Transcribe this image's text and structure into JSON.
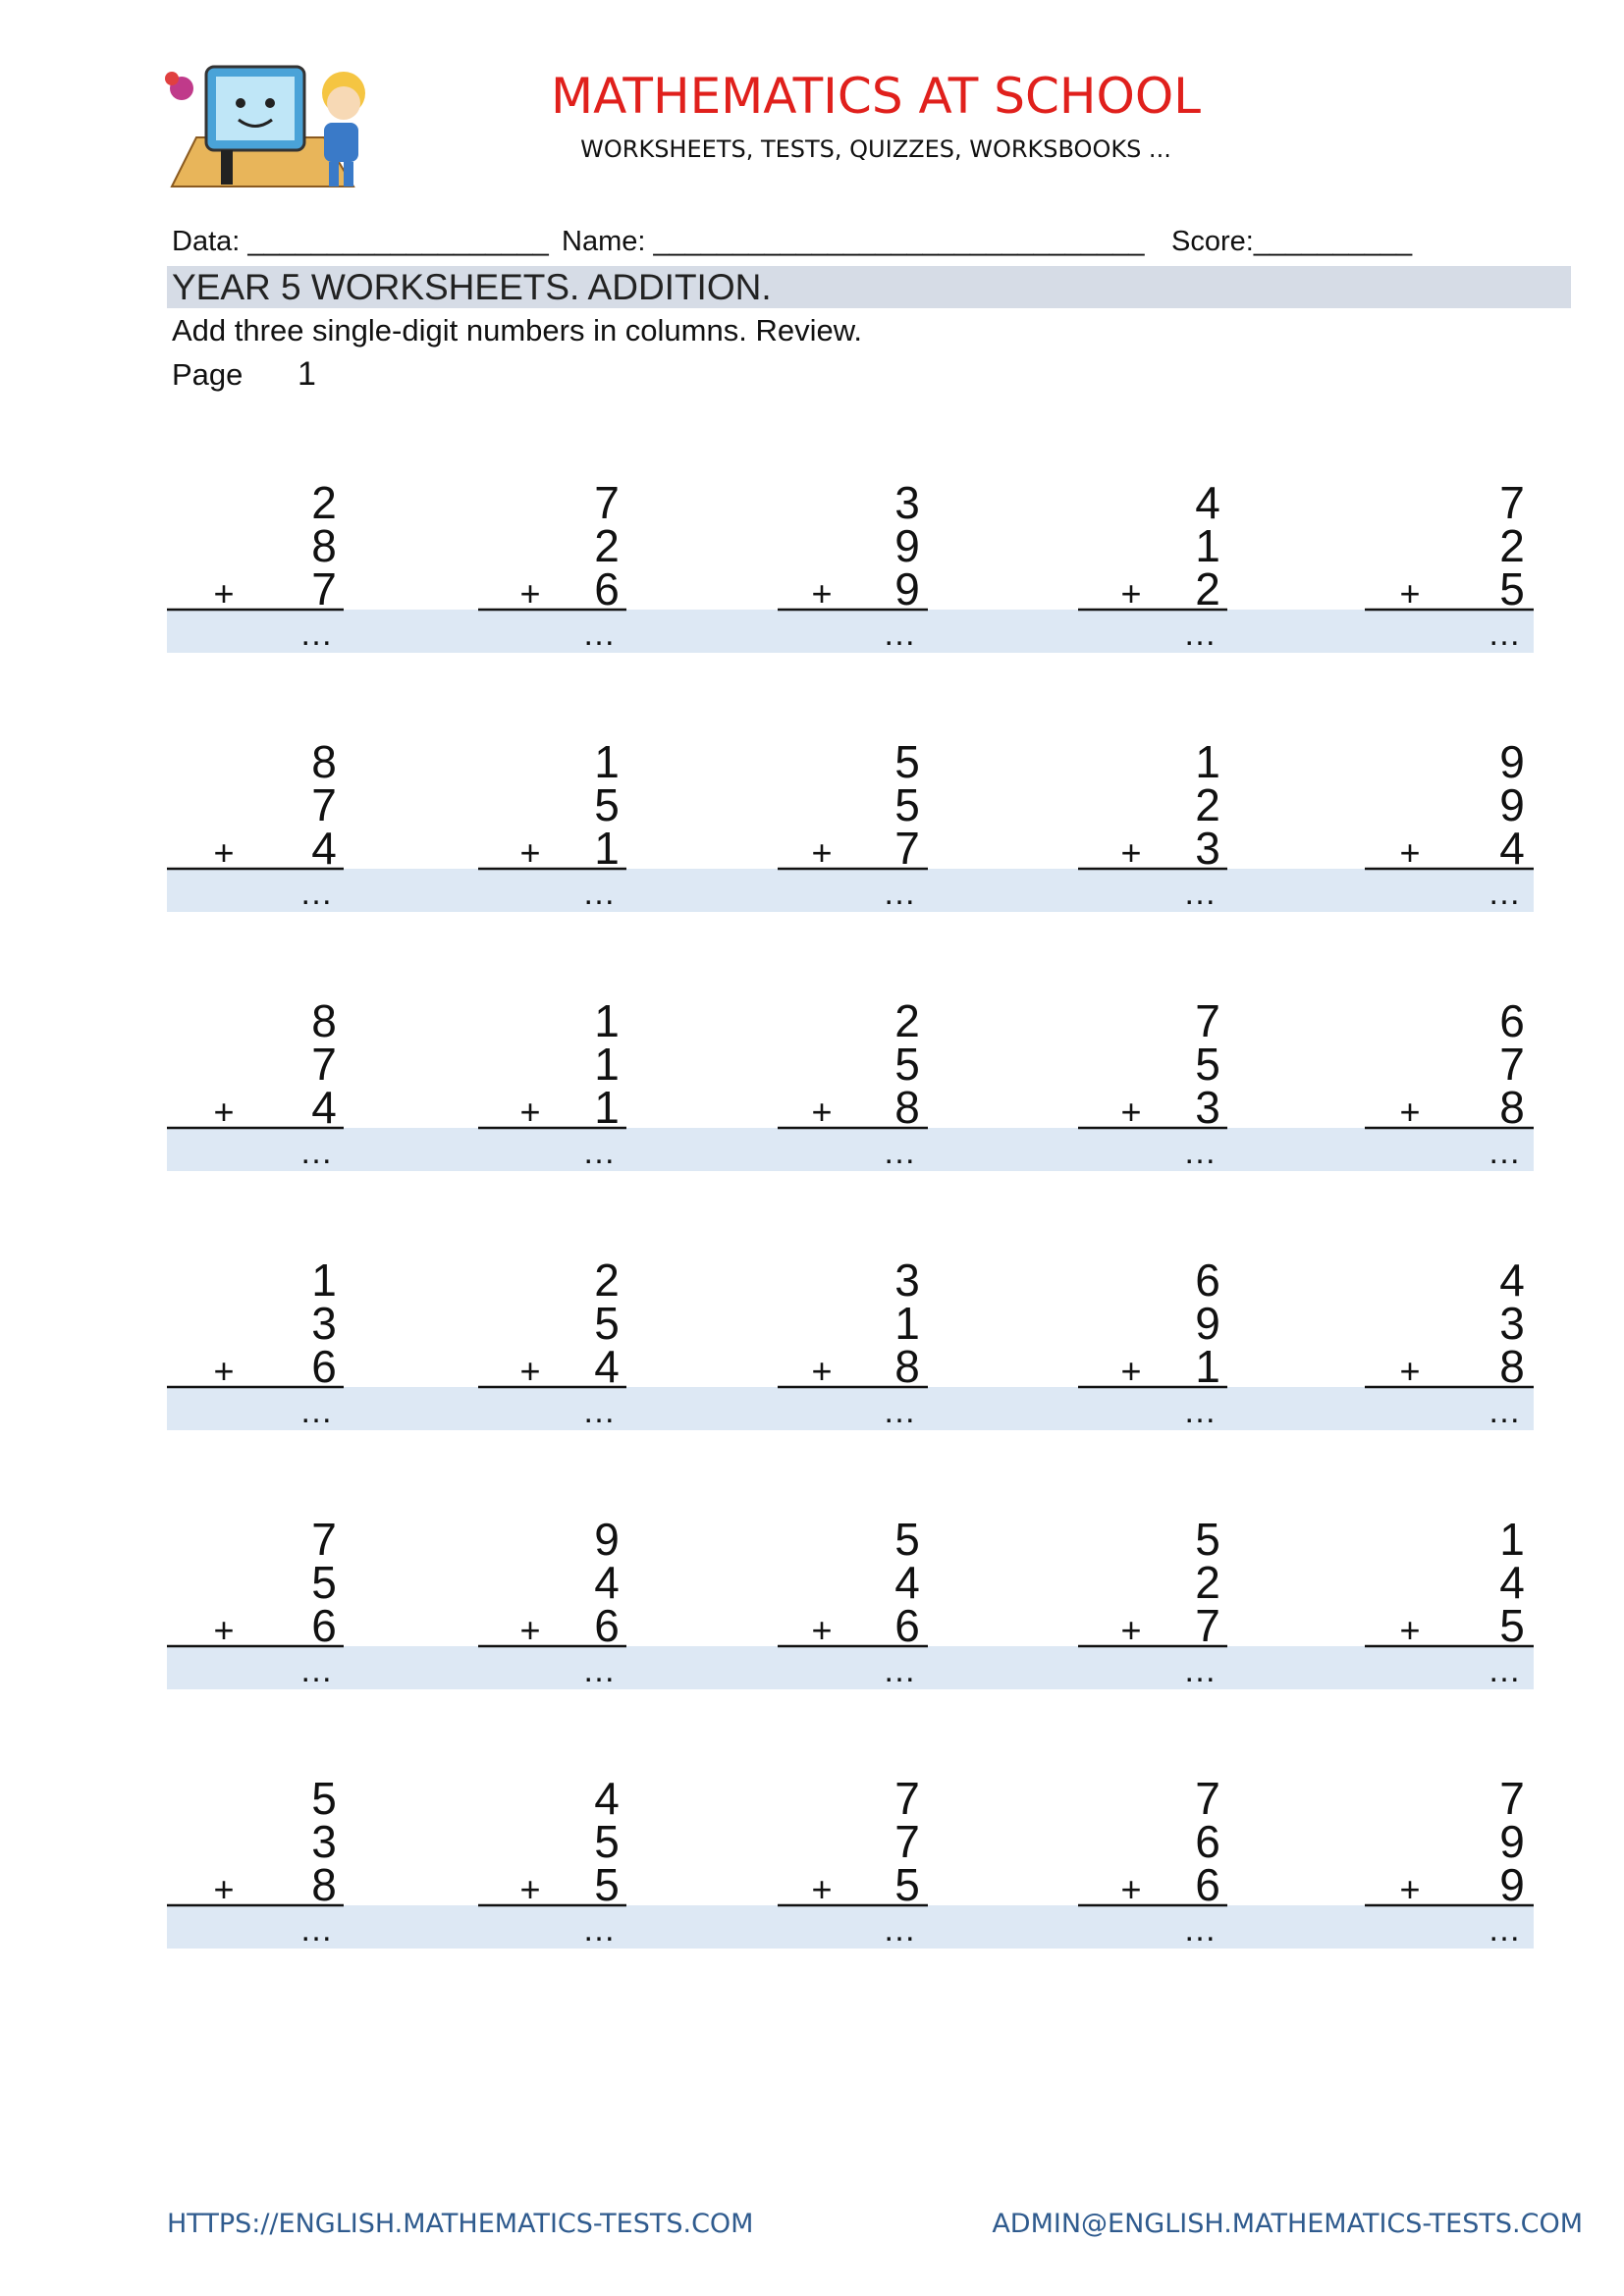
{
  "header": {
    "title": "MATHEMATICS AT SCHOOL",
    "subtitle": "WORKSHEETS, TESTS, QUIZZES, WORKSBOOKS ..."
  },
  "form": {
    "date": "Data: ___________________",
    "name": "Name: _______________________________",
    "score": "Score:__________"
  },
  "worksheet": {
    "title": "YEAR 5 WORKSHEETS. ADDITION.",
    "instruction": "Add three single-digit numbers in columns. Review.",
    "page_label": "Page",
    "page_number": 1
  },
  "problems": {
    "plus": "+",
    "blank": "…",
    "rows": [
      [
        [
          2,
          8,
          7
        ],
        [
          7,
          2,
          6
        ],
        [
          3,
          9,
          9
        ],
        [
          4,
          1,
          2
        ],
        [
          7,
          2,
          5
        ]
      ],
      [
        [
          8,
          7,
          4
        ],
        [
          1,
          5,
          1
        ],
        [
          5,
          5,
          7
        ],
        [
          1,
          2,
          3
        ],
        [
          9,
          9,
          4
        ]
      ],
      [
        [
          8,
          7,
          4
        ],
        [
          1,
          1,
          1
        ],
        [
          2,
          5,
          8
        ],
        [
          7,
          5,
          3
        ],
        [
          6,
          7,
          8
        ]
      ],
      [
        [
          1,
          3,
          6
        ],
        [
          2,
          5,
          4
        ],
        [
          3,
          1,
          8
        ],
        [
          6,
          9,
          1
        ],
        [
          4,
          3,
          8
        ]
      ],
      [
        [
          7,
          5,
          6
        ],
        [
          9,
          4,
          6
        ],
        [
          5,
          4,
          6
        ],
        [
          5,
          2,
          7
        ],
        [
          1,
          4,
          5
        ]
      ],
      [
        [
          5,
          3,
          8
        ],
        [
          4,
          5,
          5
        ],
        [
          7,
          7,
          5
        ],
        [
          7,
          6,
          6
        ],
        [
          7,
          9,
          9
        ]
      ]
    ]
  },
  "footer": {
    "url": "HTTPS://ENGLISH.MATHEMATICS-TESTS.COM",
    "email": "ADMIN@ENGLISH.MATHEMATICS-TESTS.COM"
  }
}
